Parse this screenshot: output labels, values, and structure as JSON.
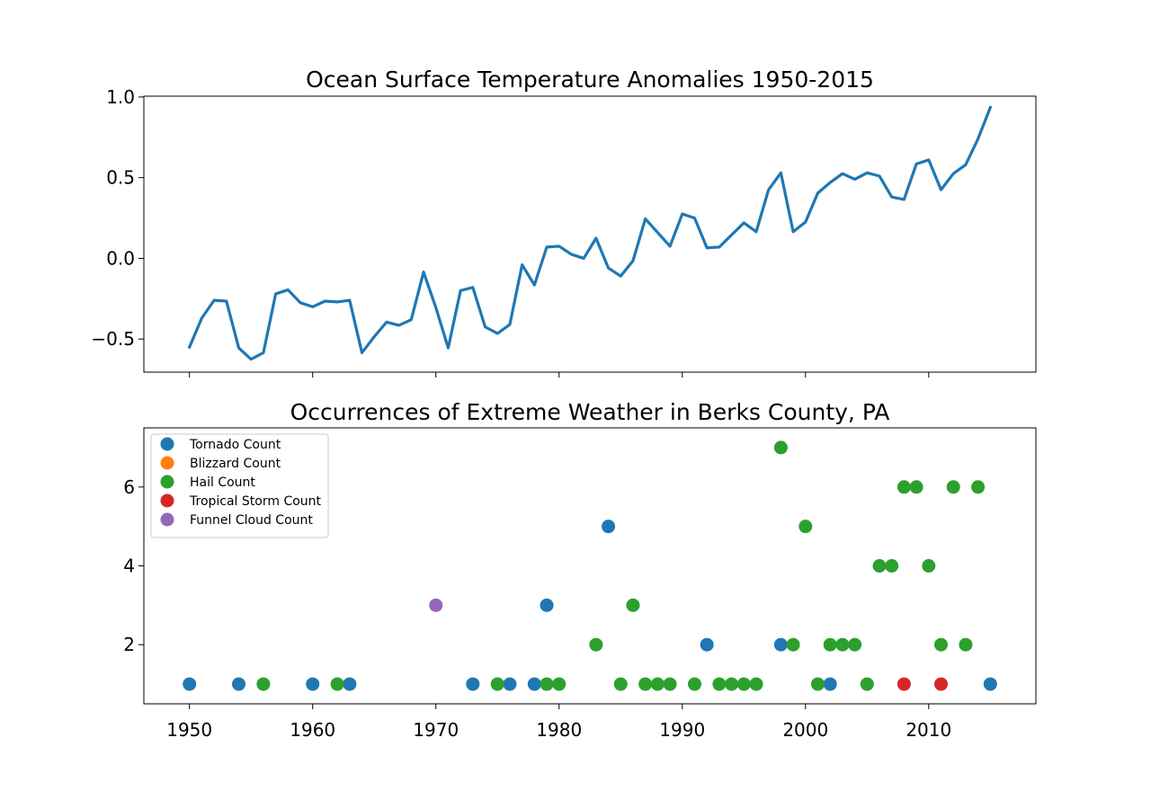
{
  "chart_data": [
    {
      "type": "line",
      "title": "Ocean Surface Temperature Anomalies 1950-2015",
      "xlabel": "",
      "ylabel": "",
      "xlim": [
        1946.3,
        2018.7
      ],
      "ylim": [
        -0.705,
        1.005
      ],
      "xticks": [
        1950,
        1960,
        1970,
        1980,
        1990,
        2000,
        2010
      ],
      "x_ticklabels_shown": false,
      "yticks": [
        -0.5,
        0.0,
        0.5,
        1.0
      ],
      "yticklabels": [
        "−0.5",
        "0.0",
        "0.5",
        "1.0"
      ],
      "grid": false,
      "color": "#1f77b4",
      "series": [
        {
          "x": [
            1950,
            1951,
            1952,
            1953,
            1954,
            1955,
            1956,
            1957,
            1958,
            1959,
            1960,
            1961,
            1962,
            1963,
            1964,
            1965,
            1966,
            1967,
            1968,
            1969,
            1970,
            1971,
            1972,
            1973,
            1974,
            1975,
            1976,
            1977,
            1978,
            1979,
            1980,
            1981,
            1982,
            1983,
            1984,
            1985,
            1986,
            1987,
            1988,
            1989,
            1990,
            1991,
            1992,
            1993,
            1994,
            1995,
            1996,
            1997,
            1998,
            1999,
            2000,
            2001,
            2002,
            2003,
            2004,
            2005,
            2006,
            2007,
            2008,
            2009,
            2010,
            2011,
            2012,
            2013,
            2014,
            2015
          ],
          "values": [
            -0.55,
            -0.37,
            -0.26,
            -0.265,
            -0.555,
            -0.625,
            -0.585,
            -0.22,
            -0.195,
            -0.275,
            -0.3,
            -0.265,
            -0.27,
            -0.26,
            -0.585,
            -0.485,
            -0.395,
            -0.415,
            -0.38,
            -0.085,
            -0.305,
            -0.555,
            -0.2,
            -0.18,
            -0.425,
            -0.465,
            -0.41,
            -0.04,
            -0.165,
            0.07,
            0.075,
            0.025,
            0.0,
            0.125,
            -0.06,
            -0.11,
            -0.015,
            0.245,
            0.16,
            0.075,
            0.275,
            0.25,
            0.065,
            0.07,
            0.145,
            0.22,
            0.165,
            0.425,
            0.53,
            0.165,
            0.225,
            0.405,
            0.47,
            0.525,
            0.49,
            0.53,
            0.51,
            0.38,
            0.365,
            0.585,
            0.61,
            0.425,
            0.525,
            0.58,
            0.74,
            0.935
          ]
        }
      ]
    },
    {
      "type": "scatter",
      "title": "Occurrences of Extreme Weather in Berks County, PA",
      "xlabel": "",
      "ylabel": "",
      "xlim": [
        1946.3,
        2018.7
      ],
      "ylim": [
        0.5,
        7.5
      ],
      "xticks": [
        1950,
        1960,
        1970,
        1980,
        1990,
        2000,
        2010
      ],
      "yticks": [
        2,
        4,
        6
      ],
      "grid": false,
      "legend_position": "top-left",
      "series": [
        {
          "name": "Tornado Count",
          "color": "#1f77b4",
          "x": [
            1950,
            1954,
            1960,
            1963,
            1973,
            1976,
            1978,
            1979,
            1984,
            1992,
            1998,
            2002,
            2015
          ],
          "values": [
            1,
            1,
            1,
            1,
            1,
            1,
            1,
            3,
            5,
            2,
            2,
            1,
            1
          ]
        },
        {
          "name": "Blizzard Count",
          "color": "#ff7f0e",
          "x": [],
          "values": []
        },
        {
          "name": "Hail Count",
          "color": "#2ca02c",
          "x": [
            1956,
            1962,
            1975,
            1979,
            1980,
            1983,
            1985,
            1986,
            1987,
            1988,
            1989,
            1991,
            1993,
            1994,
            1995,
            1996,
            1998,
            1999,
            2000,
            2001,
            2002,
            2003,
            2004,
            2005,
            2006,
            2007,
            2008,
            2009,
            2010,
            2011,
            2012,
            2013,
            2014
          ],
          "values": [
            1,
            1,
            1,
            1,
            1,
            2,
            1,
            3,
            1,
            1,
            1,
            1,
            1,
            1,
            1,
            1,
            7,
            2,
            5,
            1,
            2,
            2,
            2,
            1,
            4,
            4,
            6,
            6,
            4,
            2,
            6,
            2,
            6
          ]
        },
        {
          "name": "Tropical Storm Count",
          "color": "#d62728",
          "x": [
            2008,
            2011
          ],
          "values": [
            1,
            1
          ]
        },
        {
          "name": "Funnel Cloud Count",
          "color": "#9467bd",
          "x": [
            1970
          ],
          "values": [
            3
          ]
        }
      ]
    }
  ]
}
